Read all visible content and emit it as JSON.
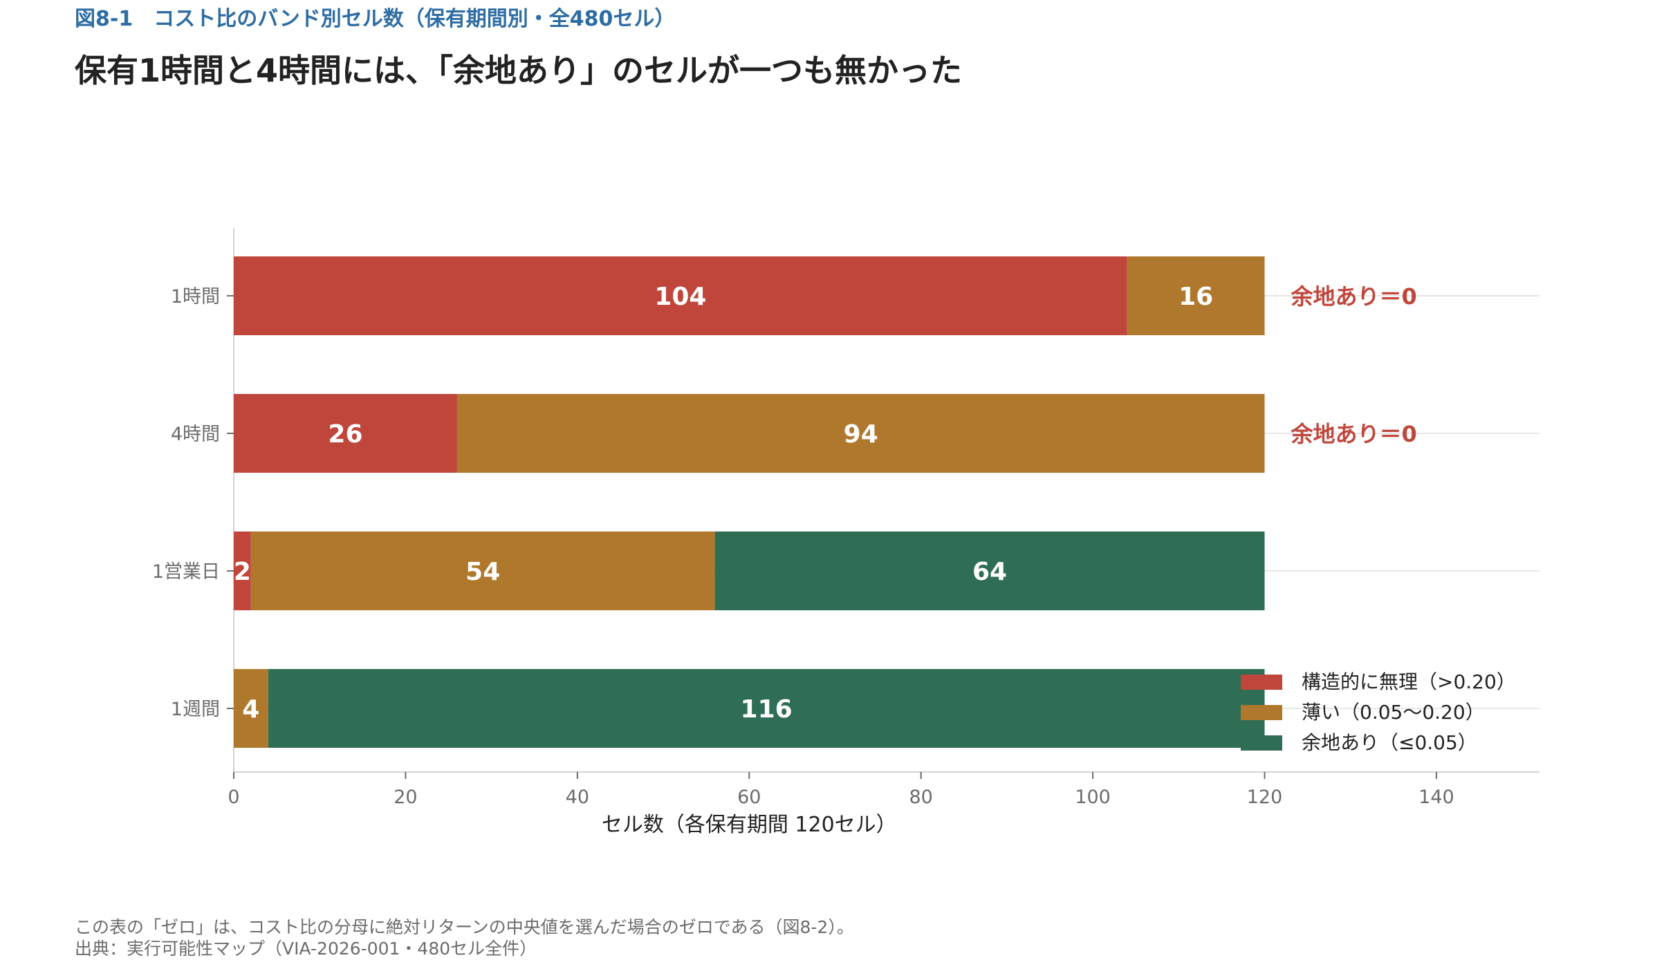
{
  "figure_label": "図8-1　コスト比のバンド別セル数（保有期間別・全480セル）",
  "headline": "保有1時間と4時間には、「余地あり」のセルが一つも無かった",
  "chart_data": {
    "type": "bar",
    "orientation": "horizontal",
    "stacked": true,
    "categories": [
      "1時間",
      "4時間",
      "1営業日",
      "1週間"
    ],
    "series": [
      {
        "name": "構造的に無理（>0.20）",
        "color": "#c0463c",
        "values": [
          104,
          26,
          2,
          0
        ]
      },
      {
        "name": "薄い（0.05〜0.20）",
        "color": "#b0782c",
        "values": [
          16,
          94,
          54,
          4
        ]
      },
      {
        "name": "余地あり（≤0.05）",
        "color": "#2f6e55",
        "values": [
          0,
          0,
          64,
          116
        ]
      }
    ],
    "xlabel": "セル数（各保有期間 120セル）",
    "xlim": [
      0,
      152
    ],
    "xticks": [
      0,
      20,
      40,
      60,
      80,
      100,
      120,
      140
    ],
    "grid": "horizontal",
    "legend_position": "bottom-right",
    "annotations": [
      {
        "category": "1時間",
        "text": "余地あり＝0",
        "color": "#c0463c"
      },
      {
        "category": "4時間",
        "text": "余地あり＝0",
        "color": "#c0463c"
      }
    ]
  },
  "footer": {
    "note": "この表の「ゼロ」は、コスト比の分母に絶対リターンの中央値を選んだ場合のゼロである（図8-2）。",
    "source": "出典：実行可能性マップ（VIA-2026-001・480セル全件）"
  }
}
